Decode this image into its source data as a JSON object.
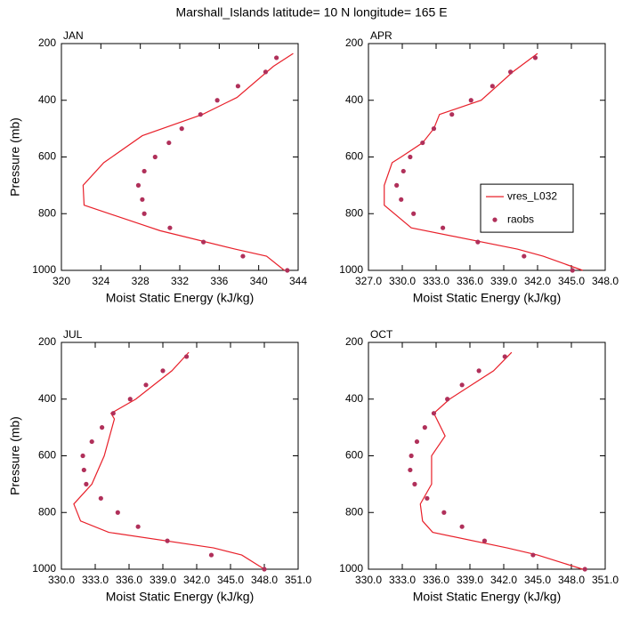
{
  "title": "Marshall_Islands  latitude= 10 N longitude= 165 E",
  "chart_data": [
    {
      "type": "line",
      "title": "JAN",
      "xlabel": "Moist Static Energy (kJ/kg)",
      "ylabel": "Pressure (mb)",
      "xlim": [
        320,
        344
      ],
      "xticks": [
        320,
        324,
        328,
        332,
        336,
        340,
        344
      ],
      "ylim": [
        1000,
        200
      ],
      "yticks": [
        200,
        400,
        600,
        800,
        1000
      ],
      "series": [
        {
          "name": "vres_L032",
          "type": "line",
          "color": "#e8202a",
          "x": [
            343.5,
            341.5,
            337.8,
            334.3,
            328.2,
            324.3,
            322.2,
            322.3,
            330.0,
            337.6,
            340.8,
            342.6
          ],
          "y": [
            235,
            280,
            390,
            450,
            525,
            620,
            700,
            770,
            860,
            925,
            950,
            1000
          ]
        },
        {
          "name": "raobs",
          "type": "scatter",
          "color": "#b0305a",
          "x": [
            341.8,
            340.7,
            337.9,
            335.8,
            334.1,
            332.2,
            330.9,
            329.5,
            328.4,
            327.8,
            328.2,
            328.4,
            331.0,
            334.4,
            338.4,
            342.9
          ],
          "y": [
            250,
            300,
            350,
            400,
            450,
            500,
            550,
            600,
            650,
            700,
            750,
            800,
            850,
            900,
            950,
            1000
          ]
        }
      ]
    },
    {
      "type": "line",
      "title": "APR",
      "xlabel": "Moist Static Energy (kJ/kg)",
      "xlim": [
        327,
        348
      ],
      "xticks": [
        {
          "value": 327,
          "label": "327.0"
        },
        {
          "value": 330,
          "label": "330.0"
        },
        {
          "value": 333,
          "label": "333.0"
        },
        {
          "value": 336,
          "label": "336.0"
        },
        {
          "value": 339,
          "label": "339.0"
        },
        {
          "value": 342,
          "label": "342.0"
        },
        {
          "value": 345,
          "label": "345.0"
        },
        {
          "value": 348,
          "label": "348.0"
        }
      ],
      "ylim": [
        1000,
        200
      ],
      "yticks": [
        200,
        400,
        600,
        800,
        1000
      ],
      "legend": "right",
      "series": [
        {
          "name": "vres_L032",
          "type": "line",
          "color": "#e8202a",
          "x": [
            342.0,
            339.8,
            337.0,
            333.3,
            332.8,
            331.8,
            329.9,
            329.1,
            328.4,
            328.4,
            330.8,
            340.2,
            342.5,
            346.0
          ],
          "y": [
            235,
            300,
            400,
            450,
            500,
            550,
            600,
            620,
            700,
            770,
            850,
            925,
            950,
            1000
          ]
        },
        {
          "name": "raobs",
          "type": "scatter",
          "color": "#b0305a",
          "x": [
            341.8,
            339.6,
            338.0,
            336.1,
            334.4,
            332.8,
            331.8,
            330.7,
            330.1,
            329.5,
            329.9,
            331.0,
            333.6,
            336.7,
            340.8,
            345.1
          ],
          "y": [
            250,
            300,
            350,
            400,
            450,
            500,
            550,
            600,
            650,
            700,
            750,
            800,
            850,
            900,
            950,
            1000
          ]
        }
      ]
    },
    {
      "type": "line",
      "title": "JUL",
      "xlabel": "Moist Static Energy (kJ/kg)",
      "ylabel": "Pressure (mb)",
      "xlim": [
        330,
        351
      ],
      "xticks": [
        {
          "value": 330,
          "label": "330.0"
        },
        {
          "value": 333,
          "label": "333.0"
        },
        {
          "value": 336,
          "label": "336.0"
        },
        {
          "value": 339,
          "label": "339.0"
        },
        {
          "value": 342,
          "label": "342.0"
        },
        {
          "value": 345,
          "label": "345.0"
        },
        {
          "value": 348,
          "label": "348.0"
        },
        {
          "value": 351,
          "label": "351.0"
        }
      ],
      "ylim": [
        1000,
        200
      ],
      "yticks": [
        200,
        400,
        600,
        800,
        1000
      ],
      "series": [
        {
          "name": "vres_L032",
          "type": "line",
          "color": "#e8202a",
          "x": [
            341.3,
            339.8,
            336.6,
            334.4,
            334.7,
            333.8,
            332.7,
            331.1,
            331.7,
            334.2,
            343.5,
            346.0,
            348.0
          ],
          "y": [
            235,
            300,
            400,
            450,
            470,
            600,
            700,
            770,
            830,
            870,
            925,
            950,
            1000
          ]
        },
        {
          "name": "raobs",
          "type": "scatter",
          "color": "#b0305a",
          "x": [
            341.1,
            339.0,
            337.5,
            336.1,
            334.6,
            333.6,
            332.7,
            331.9,
            332.0,
            332.2,
            333.5,
            335.0,
            336.8,
            339.4,
            343.3,
            348.0
          ],
          "y": [
            250,
            300,
            350,
            400,
            450,
            500,
            550,
            600,
            650,
            700,
            750,
            800,
            850,
            900,
            950,
            1000
          ]
        }
      ]
    },
    {
      "type": "line",
      "title": "OCT",
      "xlabel": "Moist Static Energy (kJ/kg)",
      "xlim": [
        330,
        351
      ],
      "xticks": [
        {
          "value": 330,
          "label": "330.0"
        },
        {
          "value": 333,
          "label": "333.0"
        },
        {
          "value": 336,
          "label": "336.0"
        },
        {
          "value": 339,
          "label": "339.0"
        },
        {
          "value": 342,
          "label": "342.0"
        },
        {
          "value": 345,
          "label": "345.0"
        },
        {
          "value": 348,
          "label": "348.0"
        },
        {
          "value": 351,
          "label": "351.0"
        }
      ],
      "ylim": [
        1000,
        200
      ],
      "yticks": [
        200,
        400,
        600,
        800,
        1000
      ],
      "series": [
        {
          "name": "vres_L032",
          "type": "line",
          "color": "#e8202a",
          "x": [
            342.7,
            341.1,
            337.2,
            335.8,
            336.8,
            335.6,
            335.6,
            334.6,
            334.8,
            335.7,
            342.3,
            345.0,
            349.0
          ],
          "y": [
            235,
            300,
            400,
            450,
            530,
            600,
            700,
            770,
            830,
            870,
            925,
            950,
            1000
          ]
        },
        {
          "name": "raobs",
          "type": "scatter",
          "color": "#b0305a",
          "x": [
            342.1,
            339.8,
            338.3,
            337.0,
            335.8,
            335.0,
            334.3,
            333.8,
            333.7,
            334.1,
            335.2,
            336.7,
            338.3,
            340.3,
            344.6,
            349.2
          ],
          "y": [
            250,
            300,
            350,
            400,
            450,
            500,
            550,
            600,
            650,
            700,
            750,
            800,
            850,
            900,
            950,
            1000
          ]
        }
      ]
    }
  ]
}
